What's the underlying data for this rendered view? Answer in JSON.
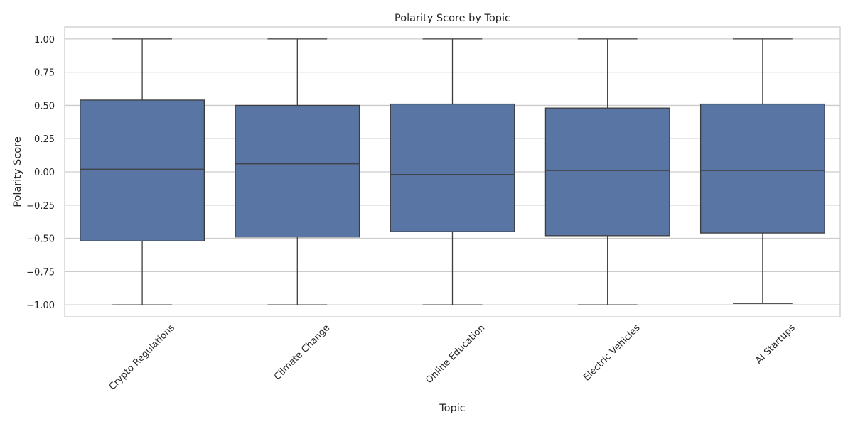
{
  "chart_data": {
    "type": "box",
    "title": "Polarity Score by Topic",
    "xlabel": "Topic",
    "ylabel": "Polarity Score",
    "ylim": [
      -1.09,
      1.09
    ],
    "yticks": [
      -1.0,
      -0.75,
      -0.5,
      -0.25,
      0.0,
      0.25,
      0.5,
      0.75,
      1.0
    ],
    "ytick_labels": [
      "−1.00",
      "−0.75",
      "−0.50",
      "−0.25",
      "0.00",
      "0.25",
      "0.50",
      "0.75",
      "1.00"
    ],
    "grid": true,
    "box_color": "#5875a4",
    "line_color": "#3d3d3d",
    "categories": [
      "Crypto Regulations",
      "Climate Change",
      "Online Education",
      "Electric Vehicles",
      "AI Startups"
    ],
    "boxes": [
      {
        "category": "Crypto Regulations",
        "min": -1.0,
        "q1": -0.52,
        "median": 0.02,
        "q3": 0.54,
        "max": 1.0
      },
      {
        "category": "Climate Change",
        "min": -1.0,
        "q1": -0.49,
        "median": 0.06,
        "q3": 0.5,
        "max": 1.0
      },
      {
        "category": "Online Education",
        "min": -1.0,
        "q1": -0.45,
        "median": -0.02,
        "q3": 0.51,
        "max": 1.0
      },
      {
        "category": "Electric Vehicles",
        "min": -1.0,
        "q1": -0.48,
        "median": 0.01,
        "q3": 0.48,
        "max": 1.0
      },
      {
        "category": "AI Startups",
        "min": -0.99,
        "q1": -0.46,
        "median": 0.01,
        "q3": 0.51,
        "max": 1.0
      }
    ]
  }
}
